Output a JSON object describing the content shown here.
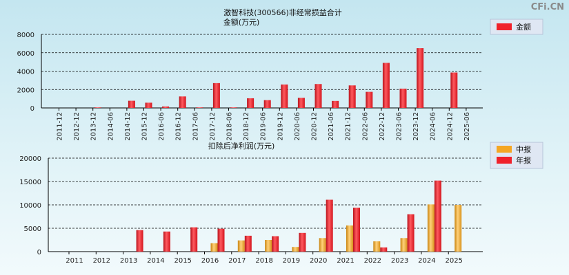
{
  "watermark": "CFi.CN",
  "colors": {
    "annual": "#f0202a",
    "interim": "#f5a623",
    "single": "#f0202a",
    "grid": "#000000"
  },
  "chart_data": [
    {
      "type": "bar",
      "title": "激智科技(300566)非经常损益合计",
      "subtitle": "金额(万元)",
      "categories": [
        "2011-12",
        "2012-12",
        "2013-12",
        "2014-06",
        "2014-12",
        "2015-12",
        "2016-06",
        "2016-12",
        "2017-06",
        "2017-12",
        "2018-06",
        "2018-12",
        "2019-06",
        "2019-12",
        "2020-06",
        "2020-12",
        "2021-06",
        "2021-12",
        "2022-06",
        "2022-12",
        "2023-06",
        "2023-12",
        "2024-06",
        "2024-12",
        "2025-06"
      ],
      "values": [
        0,
        0,
        60,
        0,
        780,
        570,
        160,
        1250,
        60,
        2700,
        60,
        1050,
        850,
        2550,
        1100,
        2600,
        760,
        2450,
        1750,
        4900,
        2100,
        6500,
        0,
        3850,
        0
      ],
      "ylim": [
        0,
        8000
      ],
      "yticks": [
        0,
        2000,
        4000,
        6000,
        8000
      ],
      "legend": {
        "position": "top-right",
        "entries": [
          "金额"
        ]
      },
      "grid": true
    },
    {
      "type": "bar",
      "title": "扣除后净利润(万元)",
      "categories": [
        "2011",
        "2012",
        "2013",
        "2014",
        "2015",
        "2016",
        "2017",
        "2018",
        "2019",
        "2020",
        "2021",
        "2022",
        "2023",
        "2024",
        "2025"
      ],
      "series": [
        {
          "name": "中报",
          "values": [
            0,
            0,
            0,
            0,
            0,
            1800,
            2400,
            2500,
            1000,
            2900,
            5600,
            2200,
            2900,
            10100,
            10000
          ]
        },
        {
          "name": "年报",
          "values": [
            0,
            0,
            4600,
            4300,
            5200,
            4900,
            3400,
            3300,
            4000,
            11100,
            9400,
            900,
            8000,
            15200,
            null
          ]
        }
      ],
      "ylim": [
        0,
        20000
      ],
      "yticks": [
        0,
        5000,
        10000,
        15000,
        20000
      ],
      "legend": {
        "position": "top-right",
        "entries": [
          "中报",
          "年报"
        ]
      },
      "grid": true
    }
  ]
}
